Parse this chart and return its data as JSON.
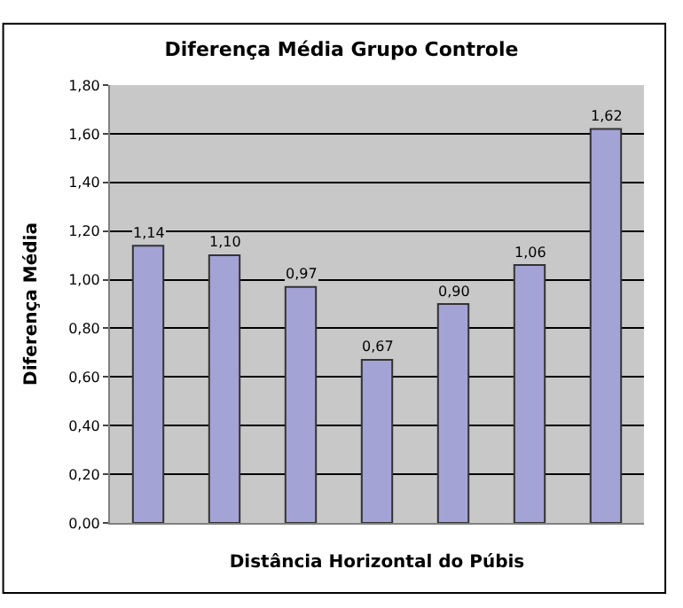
{
  "chart_data": {
    "type": "bar",
    "title": "Diferença Média Grupo Controle",
    "xlabel": "Distância Horizontal do Púbis",
    "ylabel": "Diferença Média",
    "categories": [
      null,
      null,
      null,
      null,
      null,
      null,
      null
    ],
    "values": [
      1.14,
      1.1,
      0.97,
      0.67,
      0.9,
      1.06,
      1.62
    ],
    "value_labels": [
      "1,14",
      "1,10",
      "0,97",
      "0,67",
      "0,90",
      "1,06",
      "1,62"
    ],
    "color": "#a3a3d6",
    "ylim": [
      0,
      1.8
    ],
    "yticks": [
      {
        "value": 0,
        "label": "0,00"
      },
      {
        "value": 0.2,
        "label": "0,20"
      },
      {
        "value": 0.4,
        "label": "0,40"
      },
      {
        "value": 0.6,
        "label": "0,60"
      },
      {
        "value": 0.8,
        "label": "0,80"
      },
      {
        "value": 1.0,
        "label": "1,00"
      },
      {
        "value": 1.2,
        "label": "1,20"
      },
      {
        "value": 1.4,
        "label": "1,40"
      },
      {
        "value": 1.6,
        "label": "1,60"
      },
      {
        "value": 1.8,
        "label": "1,80"
      }
    ],
    "grid": "y"
  }
}
